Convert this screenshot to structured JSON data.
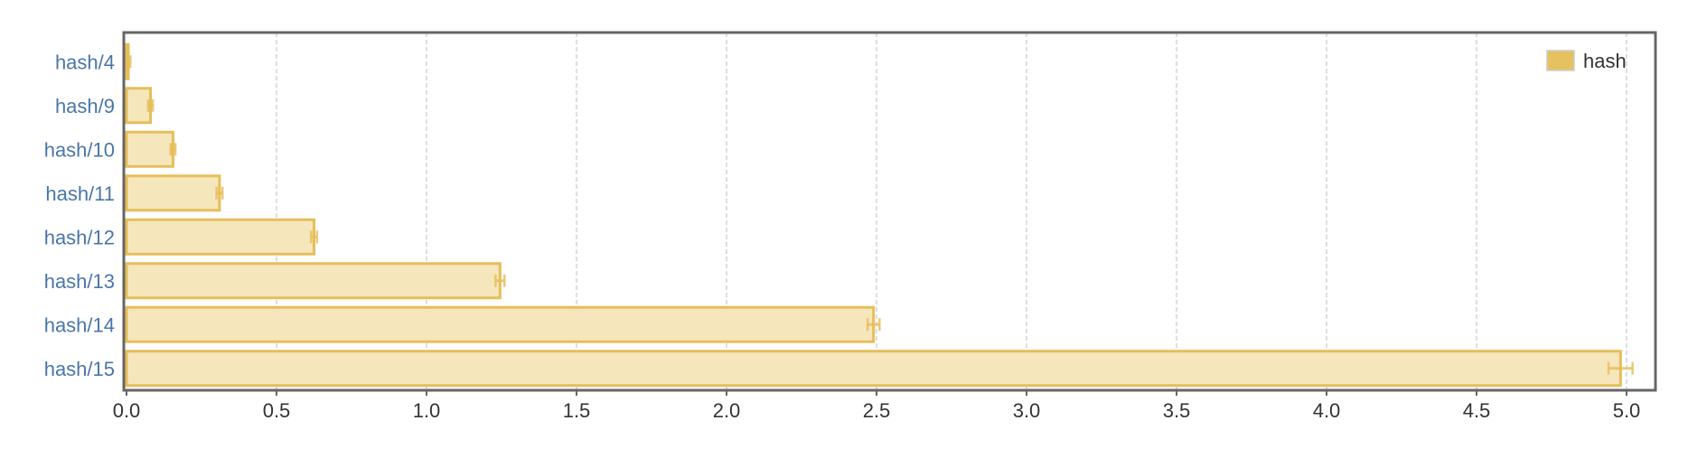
{
  "chart_data": {
    "type": "bar",
    "orientation": "horizontal",
    "categories": [
      "hash/4",
      "hash/9",
      "hash/10",
      "hash/11",
      "hash/12",
      "hash/13",
      "hash/14",
      "hash/15"
    ],
    "series": [
      {
        "name": "hash",
        "values": [
          0.005,
          0.08,
          0.155,
          0.31,
          0.625,
          1.245,
          2.49,
          4.98
        ],
        "error": [
          0.008,
          0.008,
          0.008,
          0.01,
          0.01,
          0.015,
          0.02,
          0.04
        ]
      }
    ],
    "xlim": [
      0,
      5.1
    ],
    "x_ticks": [
      "0.0",
      "0.5",
      "1.0",
      "1.5",
      "2.0",
      "2.5",
      "3.0",
      "3.5",
      "4.0",
      "4.5",
      "5.0"
    ],
    "grid": "vertical-dashed",
    "legend_position": "top-right",
    "colors": {
      "bar_fill": "#f6e6bc",
      "bar_stroke": "#e6be5a",
      "legend_swatch": "#e6c160",
      "frame": "#666666",
      "grid": "#d4d4d4",
      "category_label": "#4a76a8",
      "tick_label": "#333333"
    }
  }
}
